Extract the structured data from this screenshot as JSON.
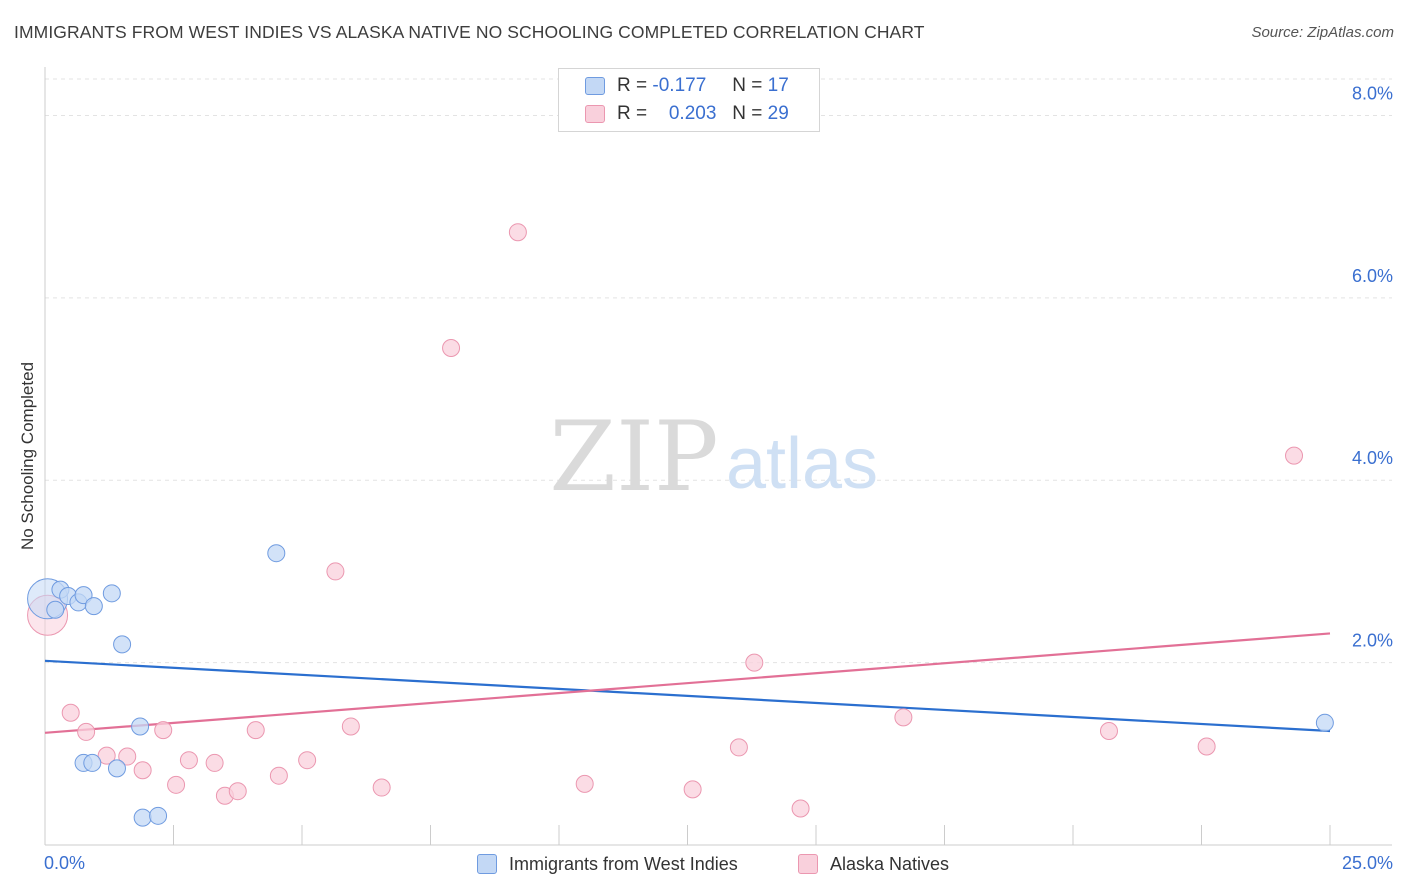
{
  "header": {
    "title": "IMMIGRANTS FROM WEST INDIES VS ALASKA NATIVE NO SCHOOLING COMPLETED CORRELATION CHART",
    "source": "Source: ZipAtlas.com"
  },
  "legend": {
    "blue": {
      "r_label": "R =",
      "r_value": "-0.177",
      "n_label": "N =",
      "n_value": "17"
    },
    "pink": {
      "r_label": "R =",
      "r_value": "0.203",
      "n_label": "N =",
      "n_value": "29"
    }
  },
  "watermark": {
    "zip": "ZIP",
    "atlas": "atlas"
  },
  "colors": {
    "blue_fill": "#c3d8f5",
    "blue_stroke": "#6f9be0",
    "blue_line": "#2b6fcf",
    "pink_fill": "#f9d0dc",
    "pink_stroke": "#eb97b0",
    "pink_line": "#e27096",
    "tick_label": "#3a6fd0"
  },
  "chart_data": {
    "type": "scatter",
    "title": "IMMIGRANTS FROM WEST INDIES VS ALASKA NATIVE NO SCHOOLING COMPLETED CORRELATION CHART",
    "xlabel": "",
    "ylabel": "No Schooling Completed",
    "xlim": [
      0,
      25
    ],
    "ylim": [
      0,
      8.4
    ],
    "x_tick_labels": [
      "0.0%",
      "25.0%"
    ],
    "y_ticks": [
      2,
      4,
      6,
      8
    ],
    "y_tick_labels": [
      "2.0%",
      "4.0%",
      "6.0%",
      "8.0%"
    ],
    "grid": true,
    "legend_placement": "bottom-center",
    "series": [
      {
        "name": "Immigrants from West Indies",
        "color": "blue",
        "points": [
          {
            "x": 0.05,
            "y": 2.7,
            "big": true
          },
          {
            "x": 0.2,
            "y": 2.58
          },
          {
            "x": 0.3,
            "y": 2.8
          },
          {
            "x": 0.45,
            "y": 2.73
          },
          {
            "x": 0.65,
            "y": 2.66
          },
          {
            "x": 0.75,
            "y": 2.74
          },
          {
            "x": 0.95,
            "y": 2.62
          },
          {
            "x": 1.3,
            "y": 2.76
          },
          {
            "x": 1.5,
            "y": 2.2
          },
          {
            "x": 0.75,
            "y": 0.9
          },
          {
            "x": 0.92,
            "y": 0.9
          },
          {
            "x": 1.4,
            "y": 0.84
          },
          {
            "x": 1.85,
            "y": 1.3
          },
          {
            "x": 1.9,
            "y": 0.3
          },
          {
            "x": 2.2,
            "y": 0.32
          },
          {
            "x": 4.5,
            "y": 3.2
          },
          {
            "x": 24.9,
            "y": 1.34
          }
        ],
        "trend": {
          "x": [
            0,
            25
          ],
          "y": [
            2.02,
            1.25
          ]
        }
      },
      {
        "name": "Alaska Natives",
        "color": "pink",
        "points": [
          {
            "x": 0.05,
            "y": 2.52,
            "big": true
          },
          {
            "x": 0.5,
            "y": 1.45
          },
          {
            "x": 0.8,
            "y": 1.24
          },
          {
            "x": 1.2,
            "y": 0.98
          },
          {
            "x": 1.6,
            "y": 0.97
          },
          {
            "x": 1.9,
            "y": 0.82
          },
          {
            "x": 2.3,
            "y": 1.26
          },
          {
            "x": 2.55,
            "y": 0.66
          },
          {
            "x": 2.8,
            "y": 0.93
          },
          {
            "x": 3.3,
            "y": 0.9
          },
          {
            "x": 3.5,
            "y": 0.54
          },
          {
            "x": 3.75,
            "y": 0.59
          },
          {
            "x": 4.1,
            "y": 1.26
          },
          {
            "x": 4.55,
            "y": 0.76
          },
          {
            "x": 5.1,
            "y": 0.93
          },
          {
            "x": 5.65,
            "y": 3.0
          },
          {
            "x": 5.95,
            "y": 1.3
          },
          {
            "x": 6.55,
            "y": 0.63
          },
          {
            "x": 7.9,
            "y": 5.45
          },
          {
            "x": 9.2,
            "y": 6.72
          },
          {
            "x": 10.5,
            "y": 0.67
          },
          {
            "x": 12.6,
            "y": 0.61
          },
          {
            "x": 13.5,
            "y": 1.07
          },
          {
            "x": 13.8,
            "y": 2.0
          },
          {
            "x": 14.7,
            "y": 0.4
          },
          {
            "x": 16.7,
            "y": 1.4
          },
          {
            "x": 20.7,
            "y": 1.25
          },
          {
            "x": 22.6,
            "y": 1.08
          },
          {
            "x": 24.3,
            "y": 4.27
          }
        ],
        "trend": {
          "x": [
            0,
            25
          ],
          "y": [
            1.23,
            2.32
          ]
        }
      }
    ]
  }
}
